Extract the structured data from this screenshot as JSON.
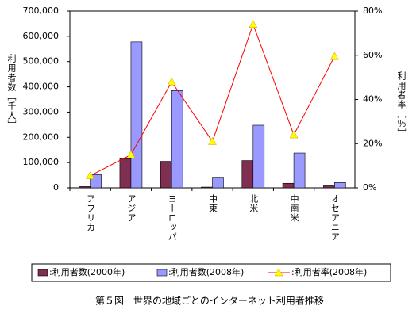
{
  "chart_data": {
    "type": "bar-line",
    "caption": "第５図　世界の地域ごとのインターネット利用者推移",
    "y_label": "利用者数［千人］",
    "y2_label": "利用者率［％］",
    "categories": [
      "アフリカ",
      "アジア",
      "ヨーロッパ",
      "中東",
      "北米",
      "中南米",
      "オセアニア"
    ],
    "series": [
      {
        "name": ":利用者数(2000年)",
        "type": "bar",
        "color": "#7f2f52",
        "values": [
          5000,
          115000,
          105000,
          3000,
          108000,
          18000,
          8000
        ]
      },
      {
        "name": ":利用者数(2008年)",
        "type": "bar",
        "color": "#9999ff",
        "values": [
          52000,
          578000,
          385000,
          42000,
          248000,
          138000,
          21000
        ]
      },
      {
        "name": ":利用者率(2008年)",
        "type": "line",
        "axis": "y2",
        "color": "#ff0000",
        "marker_color": "#ffff00",
        "values": [
          5.5,
          15,
          48,
          21,
          74,
          24,
          59.5
        ]
      }
    ],
    "ylim": [
      0,
      700000
    ],
    "yticks": [
      0,
      {
        "value": 100000,
        "label": "100,000"
      },
      {
        "value": 200000,
        "label": "200,000"
      },
      {
        "value": 300000,
        "label": "300,000"
      },
      {
        "value": 400000,
        "label": "400,000"
      },
      {
        "value": 500000,
        "label": "500,000"
      },
      {
        "value": 600000,
        "label": "600,000"
      },
      {
        "value": 700000,
        "label": "700,000"
      }
    ],
    "y2lim": [
      0,
      80
    ],
    "y2ticks": [
      {
        "value": 0,
        "label": "0%"
      },
      {
        "value": 20,
        "label": "20%"
      },
      {
        "value": 40,
        "label": "40%"
      },
      {
        "value": 60,
        "label": "60%"
      },
      {
        "value": 80,
        "label": "80%"
      }
    ],
    "legend": "bottom"
  }
}
